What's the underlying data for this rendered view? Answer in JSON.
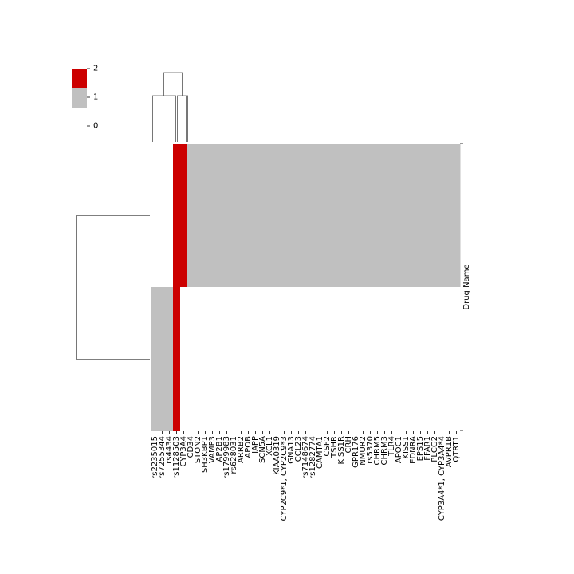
{
  "chart_data": {
    "type": "heatmap",
    "title": "",
    "xlabel": "",
    "ylabel": "Drug Name",
    "colorbar": {
      "ticks": [
        0,
        1,
        2
      ],
      "colors": {
        "0": "#ffffff",
        "1": "#c0c0c0",
        "2": "#cc0000"
      }
    },
    "x_tick_labels": [
      "rs2235015",
      "rs7255344",
      "rs4434",
      "rs1128503",
      "CYP3A4",
      "CD34",
      "STON2",
      "SH3KBP1",
      "VAMP3",
      "AP2B1",
      "rs1799983",
      "rs628031",
      "ARRB2",
      "APOB",
      "IAPP",
      "SCN5A",
      "XCL1",
      "KIAA0319",
      "CYP2C9*1, CYP2C9*3",
      "GNA13",
      "CCL23",
      "rs7148674",
      "rs1282774",
      "CAMTA1",
      "CSF2",
      "TSHR",
      "KISS1R",
      "CRH",
      "GPR176",
      "NMUR2",
      "rs5370",
      "CHRM5",
      "CHRM3",
      "TLR4",
      "APOC1",
      "KISS1",
      "EDNRA",
      "EPS15",
      "FFAR1",
      "PLCG2",
      "CYP3A4*1, CYP3A4*4",
      "AVPR1B",
      "QTRT1"
    ],
    "row_groups": [
      {
        "rows": 1,
        "cells": [
          0,
          0,
          0,
          2,
          2,
          1,
          1,
          1,
          1,
          1,
          1,
          1,
          1,
          1,
          1,
          1,
          1,
          1,
          1,
          1,
          1,
          1,
          1,
          1,
          1,
          1,
          1,
          1,
          1,
          1,
          1,
          1,
          1,
          1,
          1,
          1,
          1,
          1,
          1,
          1,
          1,
          1,
          1
        ]
      },
      {
        "rows": 1,
        "cells": [
          1,
          1,
          1,
          2,
          0,
          0,
          0,
          0,
          0,
          0,
          0,
          0,
          0,
          0,
          0,
          0,
          0,
          0,
          0,
          0,
          0,
          0,
          0,
          0,
          0,
          0,
          0,
          0,
          0,
          0,
          0,
          0,
          0,
          0,
          0,
          0,
          0,
          0,
          0,
          0,
          0,
          0,
          0
        ]
      }
    ],
    "legend": "top-left",
    "grid": false
  }
}
